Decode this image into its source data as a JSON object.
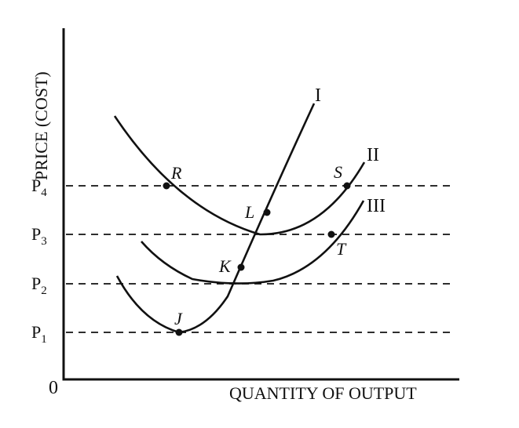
{
  "y_axis_label": "PRICE (COST)",
  "x_axis_label": "QUANTITY OF OUTPUT",
  "origin_label": "0",
  "price_levels": [
    {
      "main": "P",
      "sub": "4"
    },
    {
      "main": "P",
      "sub": "3"
    },
    {
      "main": "P",
      "sub": "2"
    },
    {
      "main": "P",
      "sub": "1"
    }
  ],
  "curve_labels": {
    "curve_I": "I",
    "curve_II": "II",
    "curve_III": "III"
  },
  "points": {
    "R": "R",
    "S": "S",
    "L": "L",
    "K": "K",
    "T": "T",
    "J": "J"
  },
  "colors": {
    "ink": "#111111",
    "background": "#ffffff"
  }
}
